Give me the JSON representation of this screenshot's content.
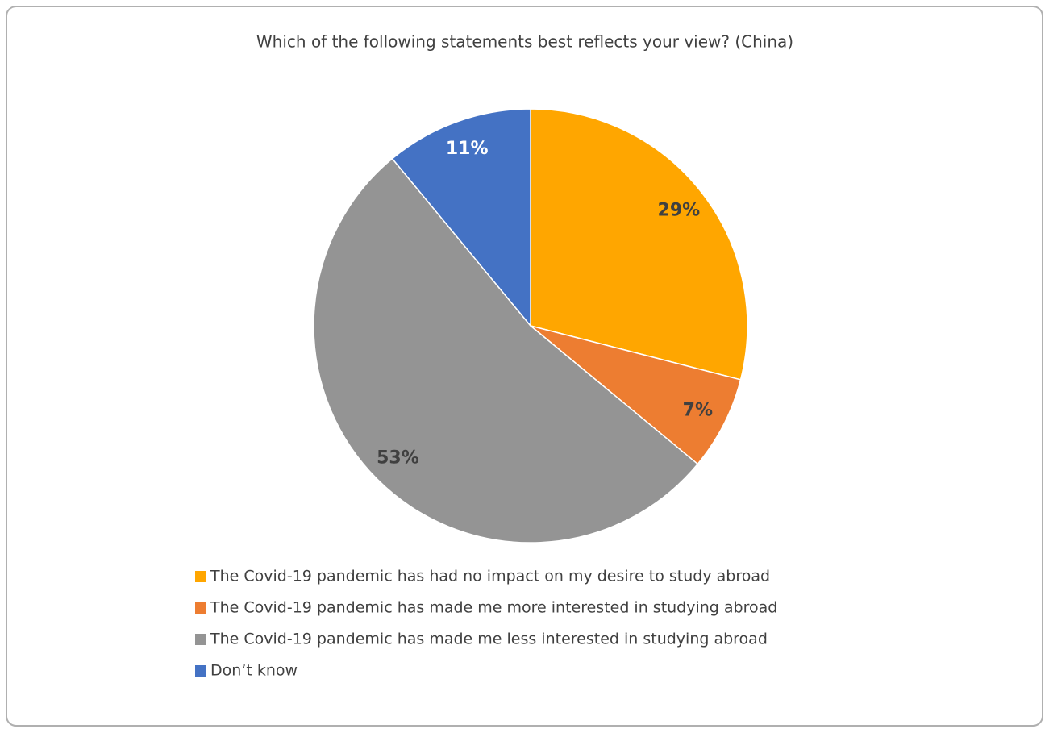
{
  "chart_data": {
    "type": "pie",
    "title": "Which of the following statements best reflects your view? (China)",
    "categories": [
      "The Covid-19 pandemic has had no impact on my desire to study abroad",
      "The Covid-19 pandemic has made me more interested in studying abroad",
      "The Covid-19 pandemic has made me less interested in studying abroad",
      "Don’t know"
    ],
    "values": [
      29,
      7,
      53,
      11
    ],
    "value_labels": [
      "29%",
      "7%",
      "53%",
      "11%"
    ],
    "colors": [
      "#ffa600",
      "#ed7d31",
      "#949494",
      "#4472c4"
    ],
    "label_colors": [
      "#404040",
      "#404040",
      "#404040",
      "#ffffff"
    ]
  }
}
